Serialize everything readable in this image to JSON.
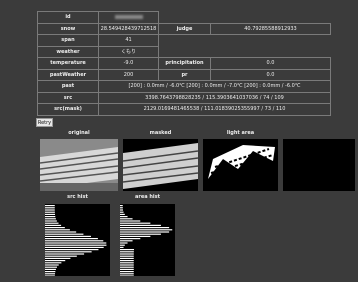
{
  "table": {
    "rows": [
      {
        "label": "id"
      },
      {
        "label": "snow",
        "value": "28.549428439712518",
        "label2": "judge",
        "value2": "40.79285588912933"
      },
      {
        "label": "span",
        "value": "41"
      },
      {
        "label": "weather",
        "value": "くもり"
      },
      {
        "label": "temperature",
        "value": "-9.0",
        "label2": "principitation",
        "value2": "0.0"
      },
      {
        "label": "pastWeather",
        "value": "200",
        "label2": "pr",
        "value2": "0.0"
      },
      {
        "label": "past",
        "value": "[200] : 0.0mm / -6.0℃ [200] : 0.0mm / -7.0℃ [200] : 0.0mm / -6.0℃"
      },
      {
        "label": "src",
        "value": "3398.7643798828235 / 115.3903641037036 / 74 / 109"
      },
      {
        "label": "src(mask)",
        "value": "2129.0169481465538 / 111.01839025355997 / 73 / 110"
      }
    ]
  },
  "button": "Retry",
  "images": [
    "original",
    "masked",
    "light area"
  ],
  "histograms": [
    "src hist",
    "area hist"
  ]
}
